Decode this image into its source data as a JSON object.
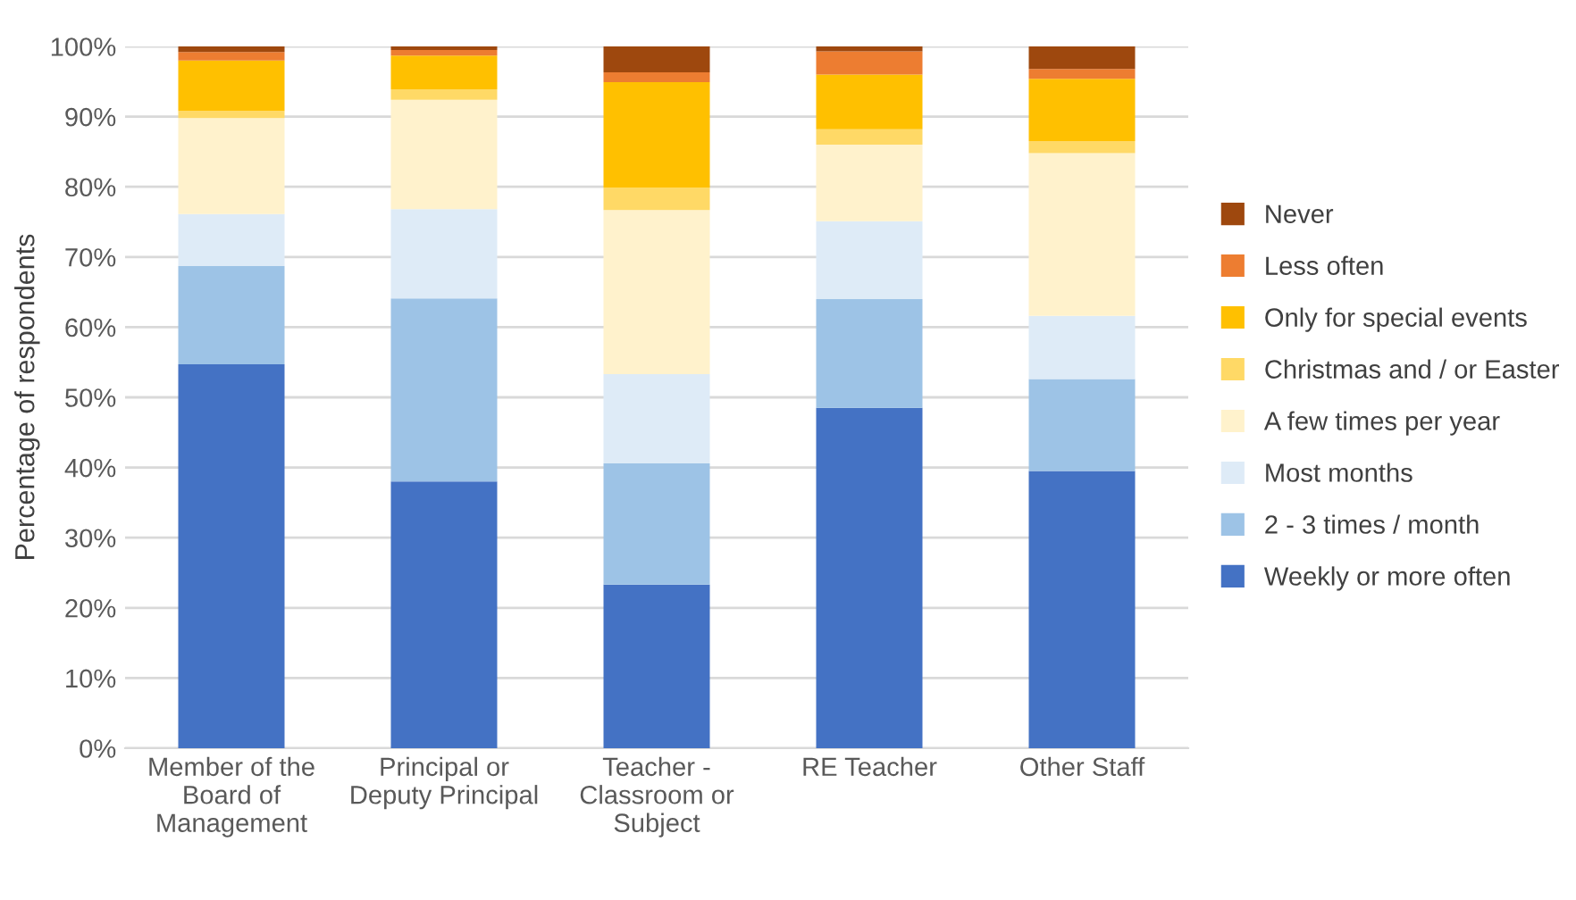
{
  "chart_data": {
    "type": "bar",
    "stacked": true,
    "ylabel": "Percentage of respondents",
    "categories": [
      "Member of the\nBoard of\nManagement",
      "Principal or\nDeputy Principal",
      "Teacher -\nClassroom or\nSubject",
      "RE Teacher",
      "Other Staff"
    ],
    "series": [
      {
        "name": "Weekly or more often",
        "color": "#4472c4",
        "values": [
          54.7,
          38.0,
          23.3,
          48.5,
          39.5
        ]
      },
      {
        "name": "2 - 3 times / month",
        "color": "#9dc3e6",
        "values": [
          14.0,
          26.1,
          17.3,
          15.5,
          13.1
        ]
      },
      {
        "name": "Most months",
        "color": "#deebf7",
        "values": [
          7.4,
          12.7,
          12.7,
          11.1,
          9.0
        ]
      },
      {
        "name": "A few times per year",
        "color": "#fff2cc",
        "values": [
          13.7,
          15.6,
          23.4,
          10.9,
          23.2
        ]
      },
      {
        "name": "Christmas and / or Easter",
        "color": "#ffd966",
        "values": [
          1.0,
          1.5,
          3.2,
          2.2,
          1.7
        ]
      },
      {
        "name": "Only for special events",
        "color": "#ffc000",
        "values": [
          7.2,
          4.8,
          15.0,
          7.8,
          8.9
        ]
      },
      {
        "name": "Less often",
        "color": "#ed7d31",
        "values": [
          1.2,
          0.8,
          1.4,
          3.3,
          1.4
        ]
      },
      {
        "name": "Never",
        "color": "#9e480e",
        "values": [
          0.8,
          0.5,
          3.7,
          0.7,
          3.2
        ]
      }
    ],
    "ylim": [
      0,
      100
    ],
    "yticks": [
      {
        "value": 0,
        "label": "0%"
      },
      {
        "value": 10,
        "label": "10%"
      },
      {
        "value": 20,
        "label": "20%"
      },
      {
        "value": 30,
        "label": "30%"
      },
      {
        "value": 40,
        "label": "40%"
      },
      {
        "value": 50,
        "label": "50%"
      },
      {
        "value": 60,
        "label": "60%"
      },
      {
        "value": 70,
        "label": "70%"
      },
      {
        "value": 80,
        "label": "80%"
      },
      {
        "value": 90,
        "label": "90%"
      },
      {
        "value": 100,
        "label": "100%"
      }
    ],
    "grid": "y",
    "legend": "right"
  }
}
